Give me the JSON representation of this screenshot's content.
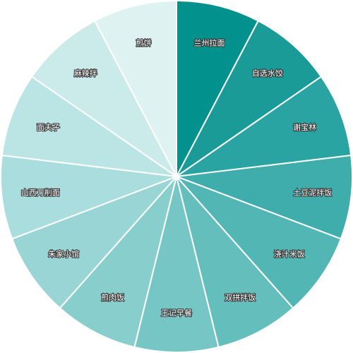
{
  "chart_data": {
    "type": "pie",
    "start": "top",
    "direction": "clockwise",
    "categories": [
      "兰州拉面",
      "自选水饺",
      "谢宝林",
      "土豆泥拌饭",
      "浇汁米饭",
      "双拼拌饭",
      "王记早餐",
      "煎肉饭",
      "朱家小馆",
      "山西刀削面",
      "面夫子",
      "麻辣拌",
      "煎饼"
    ],
    "values": [
      1,
      1,
      1,
      1,
      1,
      1,
      1,
      1,
      1,
      1,
      1,
      1,
      1
    ],
    "colors": [
      "#03918e",
      "#1a9b98",
      "#2aa4a2",
      "#3eadab",
      "#51b6b4",
      "#63bebc",
      "#75c6c5",
      "#88cecd",
      "#98d5d4",
      "#aadddd",
      "#bbe4e4",
      "#cbeaea",
      "#dff2f2",
      "#e8f5f5"
    ]
  }
}
